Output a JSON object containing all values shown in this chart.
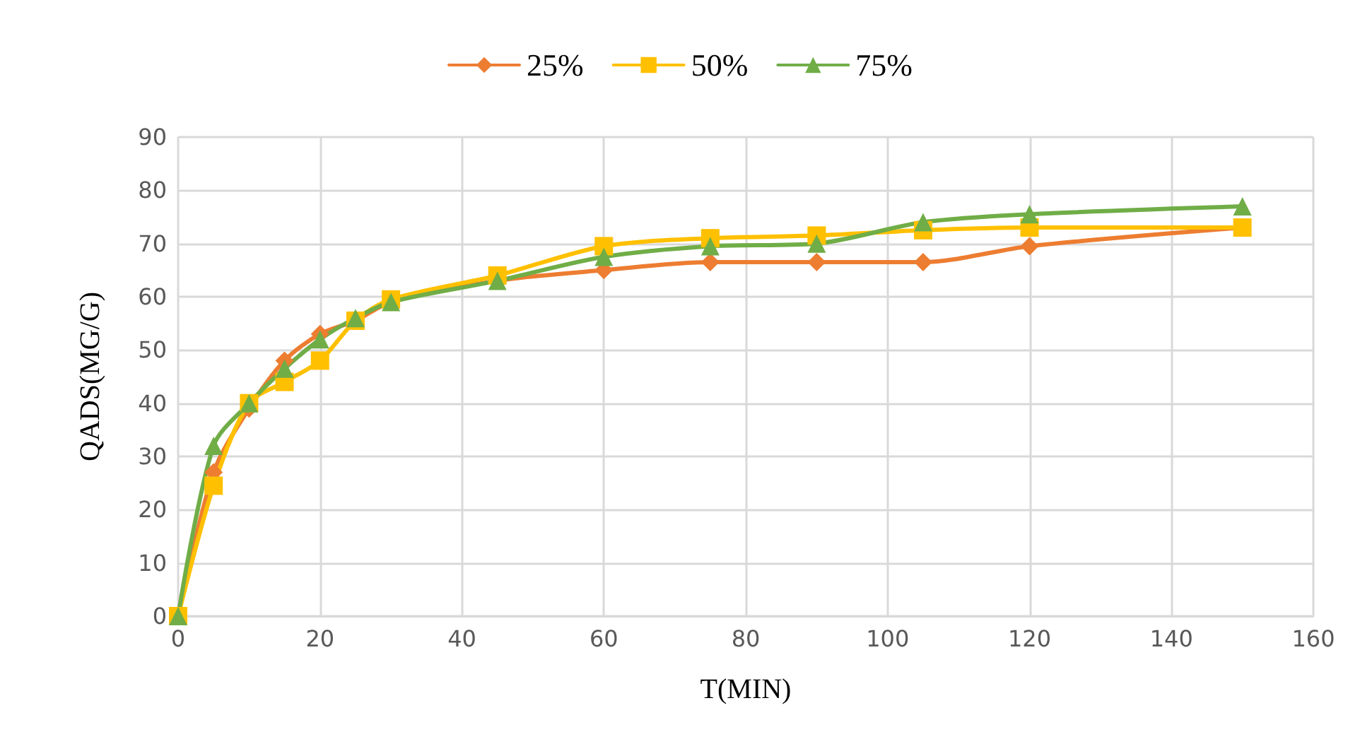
{
  "chart_data": {
    "type": "line",
    "xlabel": "T(MIN)",
    "ylabel": "QADS(MG/G)",
    "x": [
      0,
      5,
      10,
      15,
      20,
      25,
      30,
      45,
      60,
      75,
      90,
      105,
      120,
      150
    ],
    "series": [
      {
        "name": "25%",
        "color": "#ed7d31",
        "marker": "diamond",
        "values": [
          0,
          27,
          39,
          48,
          53,
          55.5,
          59,
          63,
          65,
          66.5,
          66.5,
          66.5,
          69.5,
          73
        ]
      },
      {
        "name": "50%",
        "color": "#ffc000",
        "marker": "square",
        "values": [
          0,
          24.5,
          40,
          44,
          48,
          55.5,
          59.5,
          64,
          69.5,
          71,
          71.5,
          72.5,
          73,
          73
        ]
      },
      {
        "name": "75%",
        "color": "#70ad47",
        "marker": "triangle",
        "values": [
          0,
          32,
          40,
          46.5,
          52,
          56,
          59,
          63,
          67.5,
          69.5,
          70,
          74,
          75.5,
          77
        ]
      }
    ],
    "xlim": [
      0,
      160
    ],
    "xticks": [
      0,
      20,
      40,
      60,
      80,
      100,
      120,
      140,
      160
    ],
    "ylim": [
      0,
      90
    ],
    "yticks": [
      0,
      10,
      20,
      30,
      40,
      50,
      60,
      70,
      80,
      90
    ],
    "grid": true,
    "legend": "top",
    "line_style": "solid"
  }
}
